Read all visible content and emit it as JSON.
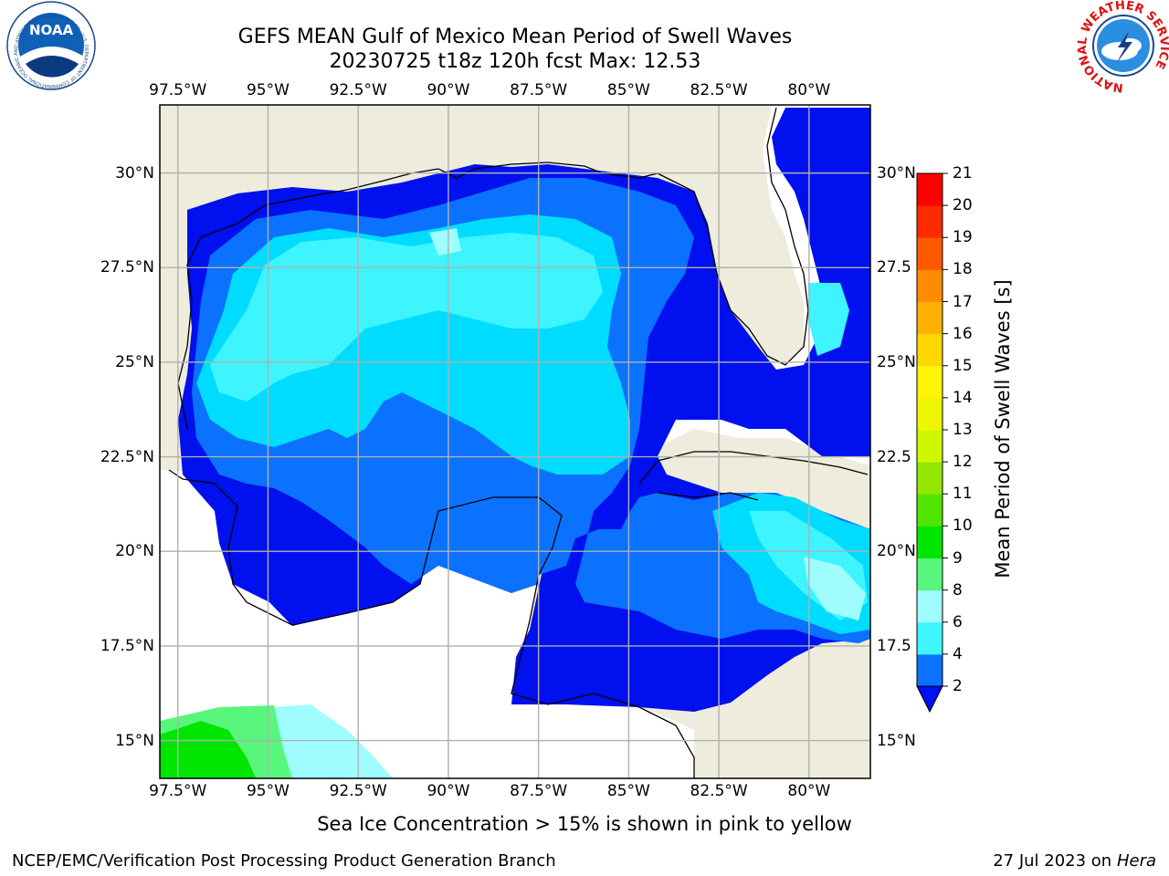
{
  "header": {
    "title_line1": "GEFS MEAN Gulf of Mexico Mean Period of Swell Waves",
    "title_line2": "20230725 t18z 120h fcst   Max: 12.53"
  },
  "logos": {
    "left": "NOAA",
    "left_ring": "NATIONAL OCEANIC AND ATMOSPHERIC ADMINISTRATION · U.S. DEPARTMENT OF COMMERCE",
    "right_ring": "NATIONAL WEATHER SERVICE"
  },
  "map": {
    "lon_ticks": [
      "97.5°W",
      "95°W",
      "92.5°W",
      "90°W",
      "87.5°W",
      "85°W",
      "82.5°W",
      "80°W"
    ],
    "lon_values": [
      -97.5,
      -95,
      -92.5,
      -90,
      -87.5,
      -85,
      -82.5,
      -80
    ],
    "lat_ticks_left": [
      "30°N",
      "27.5°N",
      "25°N",
      "22.5°N",
      "20°N",
      "17.5°N",
      "15°N"
    ],
    "lat_ticks_right": [
      "30°N",
      "27.5",
      "25°N",
      "22.5",
      "20°N",
      "17.5",
      "15°N"
    ],
    "lat_values": [
      30,
      27.5,
      25,
      22.5,
      20,
      17.5,
      15
    ],
    "extent": {
      "lon_min": -98,
      "lon_max": -78.3,
      "lat_min": 14,
      "lat_max": 31.8
    },
    "land_color": "#eeecdc",
    "grid_color": "#b0b0b0"
  },
  "colorbar": {
    "title": "Mean Period of Swell Waves [s]",
    "ticks": [
      "2",
      "4",
      "6",
      "8",
      "9",
      "10",
      "11",
      "12",
      "13",
      "14",
      "15",
      "16",
      "17",
      "18",
      "19",
      "20",
      "21"
    ],
    "colors": [
      "#0a72ff",
      "#00dcff",
      "#3ef4ff",
      "#a0fdff",
      "#58f67c",
      "#00e600",
      "#50e600",
      "#92e600",
      "#cef700",
      "#eef700",
      "#fff500",
      "#ffd700",
      "#ffb000",
      "#ff8c00",
      "#ff5a00",
      "#ff2a00",
      "#ff0000"
    ],
    "extend_color": "#0010ee"
  },
  "footer": {
    "caption": "Sea Ice Concentration > 15% is shown in pink to yellow",
    "left": "NCEP/EMC/Verification Post Processing Product Generation Branch",
    "right_date": "27 Jul 2023 on ",
    "right_host": "Hera"
  }
}
